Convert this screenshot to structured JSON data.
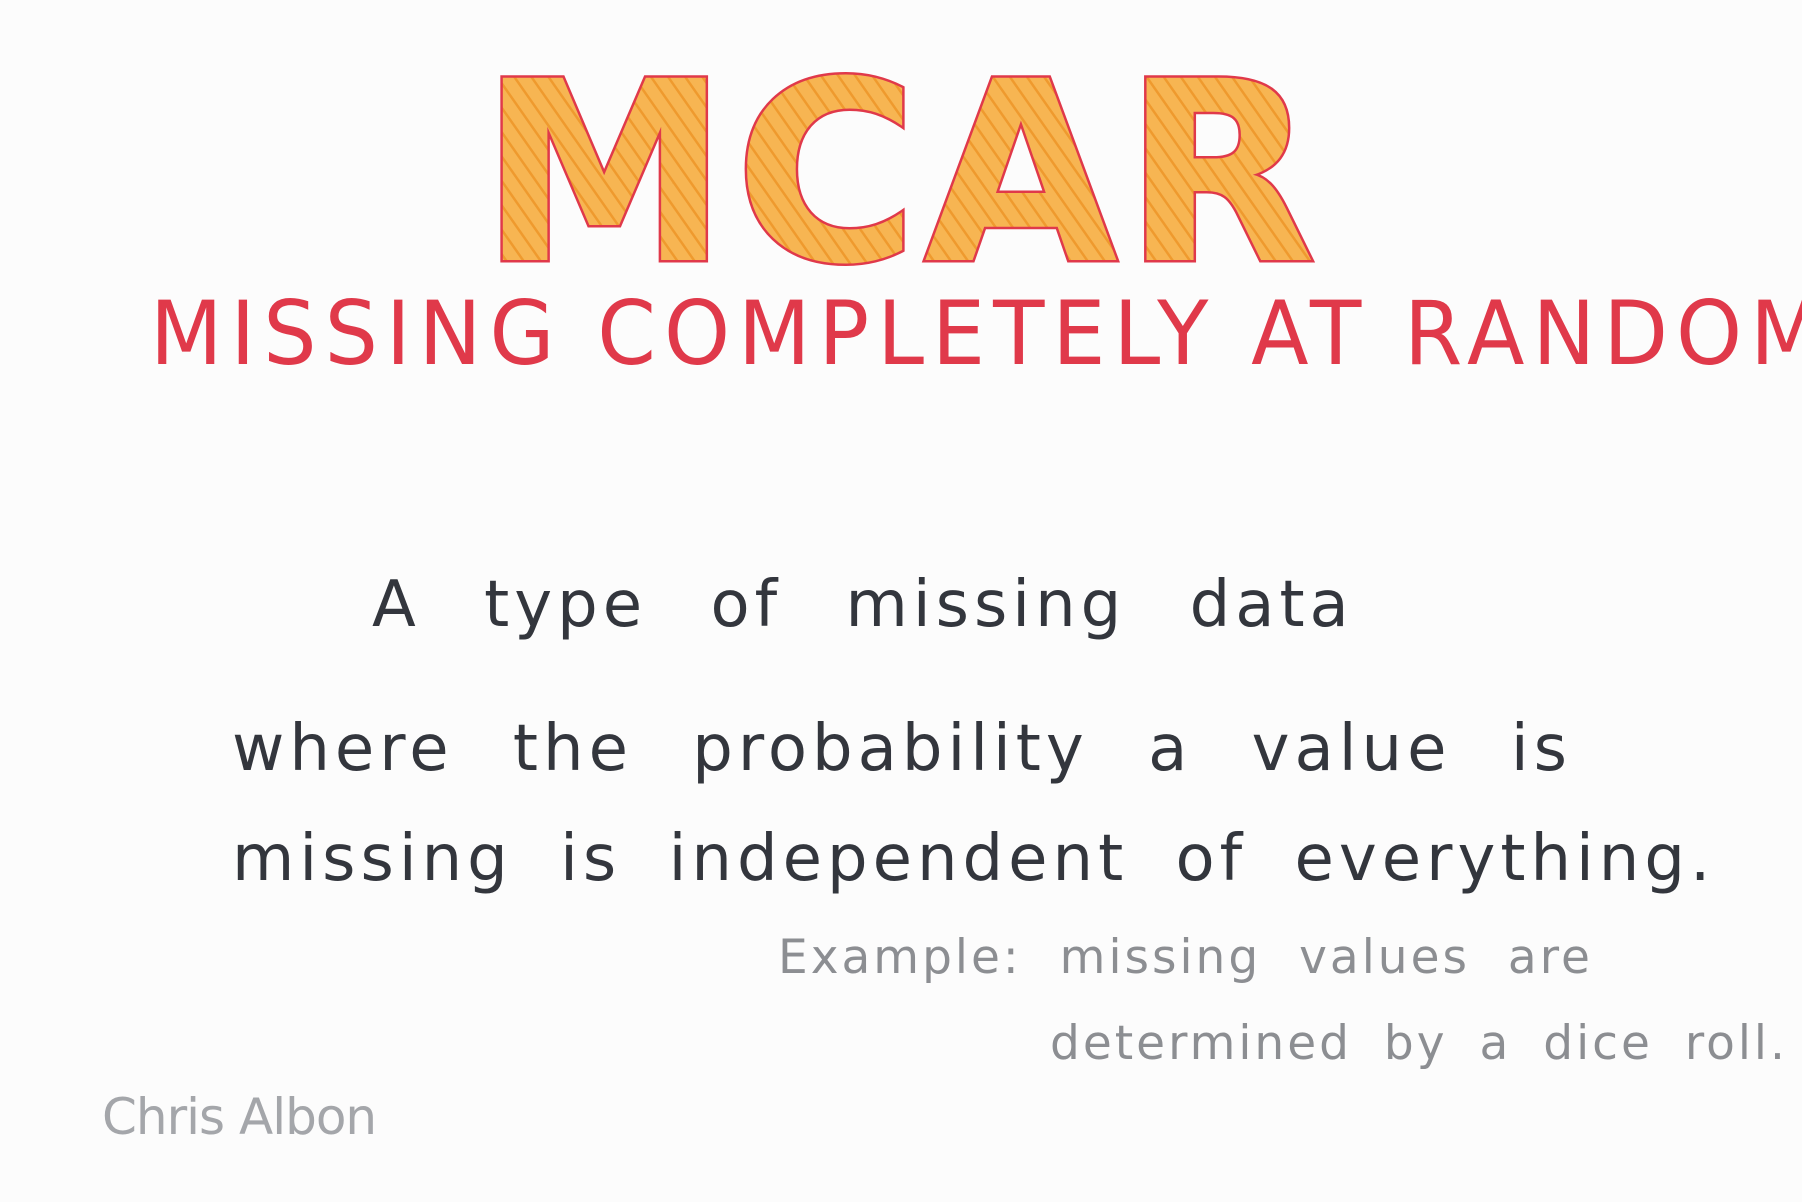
{
  "title": "MCAR",
  "subtitle": "MISSING COMPLETELY AT RANDOM",
  "definition": {
    "line1": "A type of missing data",
    "line2": "where the probability a value is",
    "line3": "missing is independent of everything."
  },
  "example": {
    "line1": "Example: missing values are",
    "line2": "determined by a dice roll."
  },
  "signature": "Chris Albon",
  "colors": {
    "title_outline": "#e0394a",
    "title_fill": "#f5a441",
    "body_text": "#33363d",
    "example_text": "#8c8e92",
    "signature_text": "#a4a6aa",
    "background": "#fcfcfc"
  }
}
